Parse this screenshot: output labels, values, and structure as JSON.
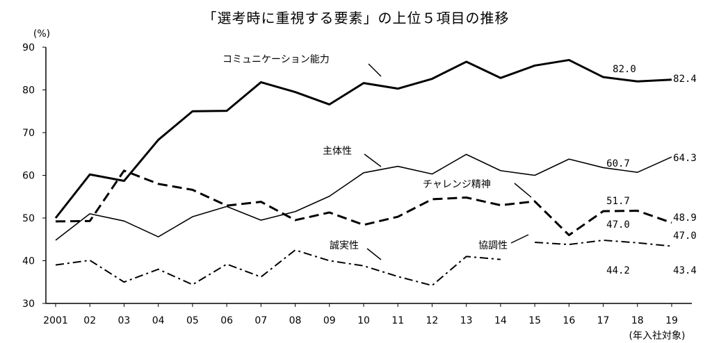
{
  "title": "「選考時に重視する要素」の上位５項目の推移",
  "chart_data": {
    "type": "line",
    "ylabel": "(%)",
    "xlabel": "(年入社対象)",
    "ylim": [
      30,
      90
    ],
    "yticks": [
      30,
      40,
      50,
      60,
      70,
      80,
      90
    ],
    "categories": [
      "2001",
      "02",
      "03",
      "04",
      "05",
      "06",
      "07",
      "08",
      "09",
      "10",
      "11",
      "12",
      "13",
      "14",
      "15",
      "16",
      "17",
      "18",
      "19"
    ],
    "grid": false,
    "series": [
      {
        "name": "コミュニケーション能力",
        "style": "solid-thick",
        "values": [
          50.0,
          60.2,
          58.7,
          68.3,
          75.0,
          75.1,
          81.8,
          79.5,
          76.6,
          81.6,
          80.3,
          82.6,
          86.6,
          82.8,
          85.7,
          87.0,
          83.0,
          82.0,
          82.4
        ]
      },
      {
        "name": "主体性",
        "style": "solid-thin",
        "values": [
          44.8,
          51.0,
          49.3,
          45.6,
          50.3,
          52.7,
          49.5,
          51.5,
          55.1,
          60.6,
          62.1,
          60.3,
          64.9,
          61.1,
          60.0,
          63.8,
          61.8,
          60.7,
          64.3
        ]
      },
      {
        "name": "チャレンジ精神",
        "style": "dashed",
        "values": [
          49.2,
          49.3,
          61.1,
          58.0,
          56.6,
          52.9,
          53.8,
          49.5,
          51.3,
          48.4,
          50.3,
          54.4,
          54.8,
          53.0,
          53.9,
          46.0,
          51.6,
          51.7,
          48.9
        ]
      },
      {
        "name": "協調性",
        "style": "dash-dot",
        "values": [
          null,
          null,
          null,
          null,
          null,
          null,
          null,
          null,
          null,
          null,
          null,
          null,
          null,
          null,
          44.3,
          43.8,
          44.8,
          44.2,
          43.4
        ]
      },
      {
        "name": "誠実性",
        "style": "dash-dot",
        "values": [
          39.0,
          40.1,
          35.0,
          38.0,
          34.4,
          39.2,
          36.2,
          42.5,
          40.0,
          38.8,
          36.3,
          34.2,
          41.0,
          40.3,
          null,
          null,
          null,
          null,
          null
        ]
      }
    ],
    "data_labels": [
      {
        "series": "コミュニケーション能力",
        "category": "18",
        "text": "82.0"
      },
      {
        "series": "コミュニケーション能力",
        "category": "19",
        "text": "82.4"
      },
      {
        "series": "主体性",
        "category": "18",
        "text": "60.7"
      },
      {
        "series": "主体性",
        "category": "19",
        "text": "64.3"
      },
      {
        "series": "チャレンジ精神",
        "category": "18",
        "text": "51.7"
      },
      {
        "series": "チャレンジ精神",
        "category": "19",
        "text": "48.9"
      },
      {
        "series": "協調性",
        "category": "18",
        "text": "44.2"
      },
      {
        "series": "協調性",
        "category": "19",
        "text": "43.4"
      },
      {
        "series": "誠実性",
        "category": "18",
        "text": "47.0"
      },
      {
        "series": "誠実性",
        "category": "19",
        "text": "47.0"
      }
    ]
  }
}
